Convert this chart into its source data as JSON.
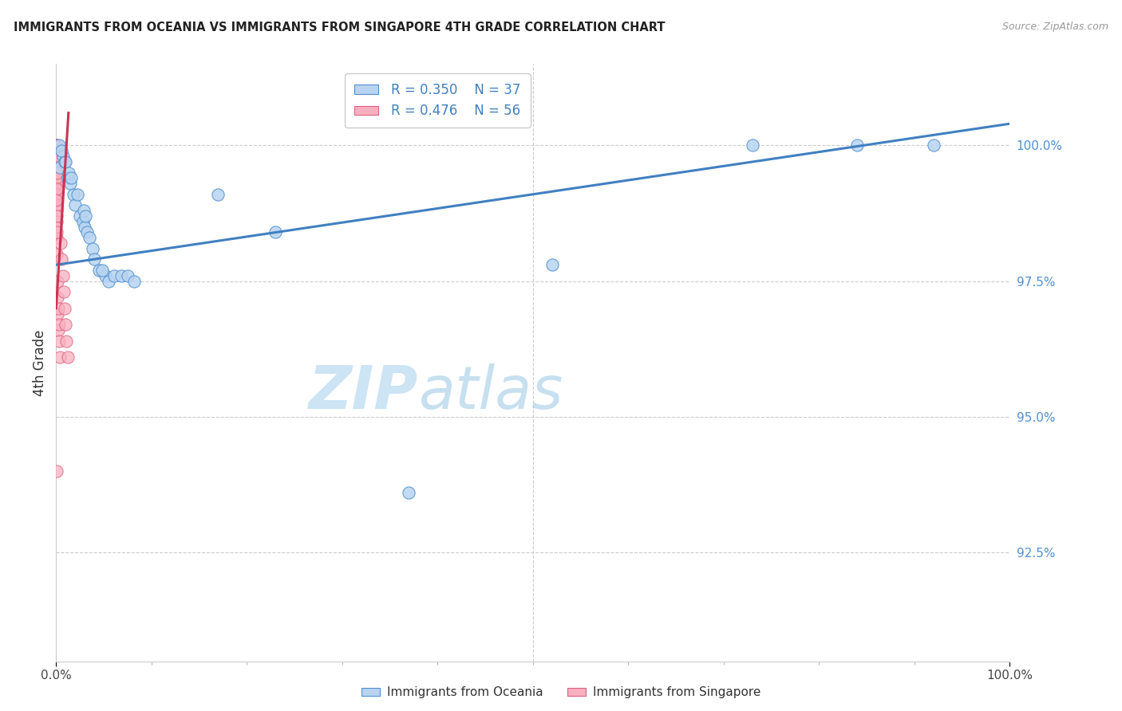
{
  "title": "IMMIGRANTS FROM OCEANIA VS IMMIGRANTS FROM SINGAPORE 4TH GRADE CORRELATION CHART",
  "source": "Source: ZipAtlas.com",
  "ylabel": "4th Grade",
  "xlim": [
    0.0,
    100.0
  ],
  "ylim": [
    90.5,
    101.5
  ],
  "y_ticks": [
    92.5,
    95.0,
    97.5,
    100.0
  ],
  "x_tick_positions": [
    0,
    100
  ],
  "x_tick_labels": [
    "0.0%",
    "100.0%"
  ],
  "legend_line1": "R = 0.350    N = 37",
  "legend_line2": "R = 0.476    N = 56",
  "blue_face": "#b8d4f0",
  "blue_edge": "#5090d0",
  "blue_line": "#4080c0",
  "pink_face": "#f8b0c0",
  "pink_edge": "#e06080",
  "pink_line": "#cc3355",
  "grid_color": "#cccccc",
  "right_label_color": "#5090d0",
  "blue_x": [
    0.4,
    0.7,
    0.9,
    1.2,
    1.5,
    1.8,
    2.0,
    2.5,
    2.8,
    3.0,
    3.2,
    3.5,
    3.8,
    4.0,
    4.5,
    5.2,
    5.5,
    6.1,
    6.8,
    7.5,
    8.2,
    0.3,
    0.6,
    1.0,
    1.3,
    1.6,
    2.2,
    2.9,
    3.1,
    4.8,
    17.0,
    23.0,
    37.0,
    52.0,
    73.0,
    84.0,
    92.0
  ],
  "blue_y": [
    99.6,
    99.8,
    99.7,
    99.4,
    99.3,
    99.1,
    98.9,
    98.7,
    98.6,
    98.5,
    98.4,
    98.3,
    98.1,
    97.9,
    97.7,
    97.6,
    97.5,
    97.6,
    97.6,
    97.6,
    97.5,
    100.0,
    99.9,
    99.7,
    99.5,
    99.4,
    99.1,
    98.8,
    98.7,
    97.7,
    99.1,
    98.4,
    93.6,
    97.8,
    100.0,
    100.0,
    100.0
  ],
  "pink_x": [
    0.0,
    0.0,
    0.0,
    0.0,
    0.0,
    0.0,
    0.0,
    0.0,
    0.0,
    0.0,
    0.01,
    0.01,
    0.01,
    0.01,
    0.01,
    0.02,
    0.02,
    0.02,
    0.02,
    0.02,
    0.03,
    0.03,
    0.03,
    0.04,
    0.04,
    0.04,
    0.05,
    0.05,
    0.05,
    0.06,
    0.07,
    0.08,
    0.09,
    0.1,
    0.12,
    0.15,
    0.18,
    0.2,
    0.25,
    0.3,
    0.35,
    0.4,
    0.5,
    0.6,
    0.7,
    0.8,
    0.9,
    1.0,
    1.1,
    1.2,
    0.0,
    0.01,
    0.02,
    0.03,
    0.05,
    0.1
  ],
  "pink_y": [
    100.0,
    99.9,
    99.8,
    99.7,
    99.6,
    99.5,
    99.4,
    99.3,
    99.2,
    99.1,
    100.0,
    99.8,
    99.6,
    99.4,
    99.2,
    100.0,
    99.7,
    99.5,
    99.3,
    99.1,
    99.8,
    99.5,
    99.2,
    99.6,
    99.3,
    99.0,
    99.4,
    99.1,
    98.8,
    99.2,
    98.9,
    98.6,
    98.3,
    98.0,
    97.5,
    97.2,
    96.9,
    96.6,
    97.0,
    96.7,
    96.4,
    96.1,
    98.2,
    97.9,
    97.6,
    97.3,
    97.0,
    96.7,
    96.4,
    96.1,
    98.5,
    99.0,
    98.7,
    98.4,
    99.5,
    94.0
  ],
  "blue_trend_x0": 0.0,
  "blue_trend_x1": 100.0,
  "blue_trend_y0": 97.8,
  "blue_trend_y1": 100.4,
  "pink_trend_x0": 0.0,
  "pink_trend_x1": 1.3,
  "pink_trend_y0": 97.0,
  "pink_trend_y1": 100.6
}
